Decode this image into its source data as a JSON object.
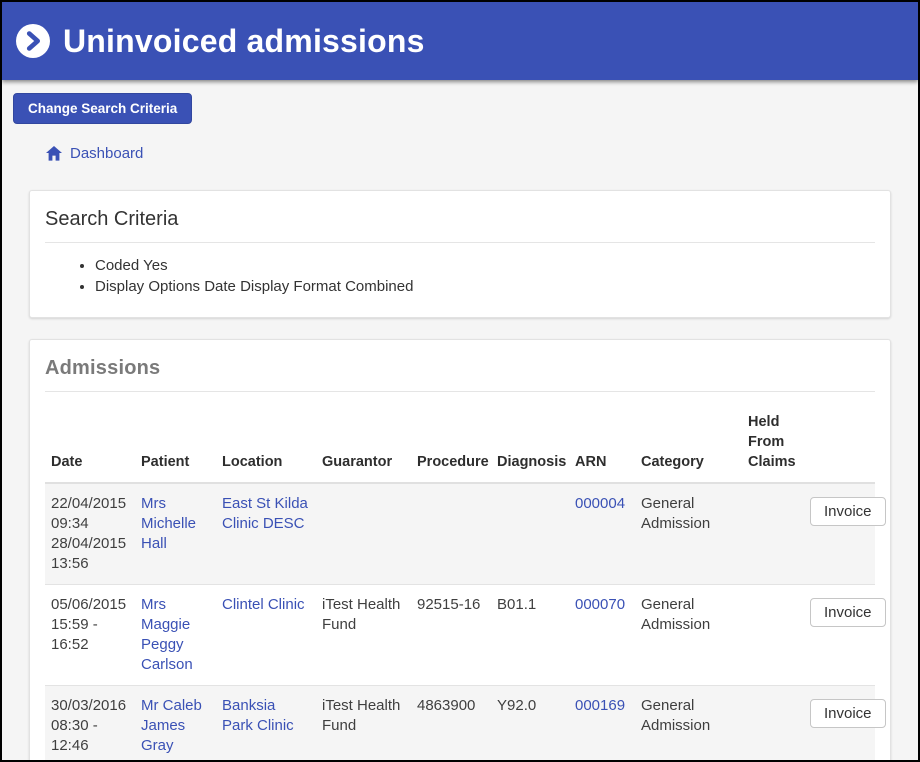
{
  "header": {
    "title": "Uninvoiced admissions"
  },
  "toolbar": {
    "change_search_label": "Change Search Criteria"
  },
  "breadcrumb": {
    "dashboard_label": "Dashboard"
  },
  "search_criteria": {
    "title": "Search Criteria",
    "items": [
      "Coded Yes",
      "Display Options Date Display Format Combined"
    ]
  },
  "admissions": {
    "title": "Admissions",
    "columns": [
      "Date",
      "Patient",
      "Location",
      "Guarantor",
      "Procedure",
      "Diagnosis",
      "ARN",
      "Category",
      "Held From Claims",
      ""
    ],
    "invoice_button_label": "Invoice",
    "rows": [
      {
        "date": "22/04/2015 09:34 28/04/2015 13:56",
        "patient": "Mrs Michelle Hall",
        "location": "East St Kilda Clinic DESC",
        "guarantor": "",
        "procedure": "",
        "diagnosis": "",
        "arn": "000004",
        "category": "General Admission",
        "held_from_claims": ""
      },
      {
        "date": "05/06/2015 15:59 - 16:52",
        "patient": "Mrs Maggie Peggy Carlson",
        "location": "Clintel Clinic",
        "guarantor": "iTest Health Fund",
        "procedure": "92515-16",
        "diagnosis": "B01.1",
        "arn": "000070",
        "category": "General Admission",
        "held_from_claims": ""
      },
      {
        "date": "30/03/2016 08:30 - 12:46",
        "patient": "Mr Caleb James Gray",
        "location": "Banksia Park Clinic",
        "guarantor": "iTest Health Fund",
        "procedure": "4863900",
        "diagnosis": "Y92.0",
        "arn": "000169",
        "category": "General Admission",
        "held_from_claims": ""
      }
    ]
  },
  "colors": {
    "accent": "#3a51b5",
    "page_background": "#f5f5f5",
    "panel_border": "#e2e2e2",
    "row_stripe": "#f5f5f5",
    "heading_gray": "#7a7a7a"
  }
}
